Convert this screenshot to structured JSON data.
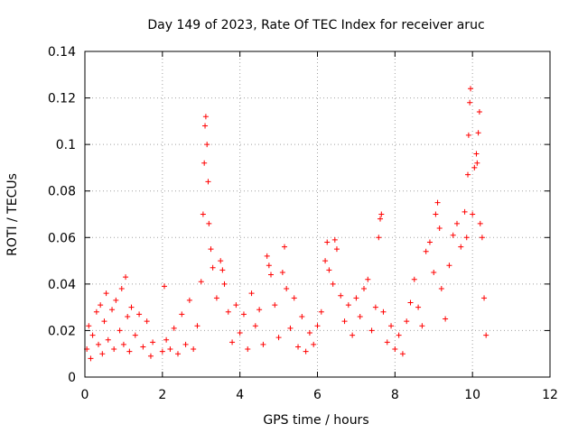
{
  "chart_data": {
    "type": "scatter",
    "title": "Day 149 of 2023, Rate Of TEC Index for receiver aruc",
    "xlabel": "GPS time / hours",
    "ylabel": "ROTI / TECUs",
    "xlim": [
      0,
      12
    ],
    "ylim": [
      0,
      0.14
    ],
    "xticks": [
      "0",
      "2",
      "4",
      "6",
      "8",
      "10",
      "12"
    ],
    "yticks": [
      "0",
      "0.02",
      "0.04",
      "0.06",
      "0.08",
      "0.1",
      "0.12",
      "0.14"
    ],
    "grid": true,
    "marker": "+",
    "color": "#ff0000",
    "series": [
      {
        "points": [
          [
            0.05,
            0.012
          ],
          [
            0.1,
            0.022
          ],
          [
            0.15,
            0.008
          ],
          [
            0.2,
            0.018
          ],
          [
            0.3,
            0.028
          ],
          [
            0.35,
            0.014
          ],
          [
            0.4,
            0.031
          ],
          [
            0.45,
            0.01
          ],
          [
            0.5,
            0.024
          ],
          [
            0.55,
            0.036
          ],
          [
            0.6,
            0.016
          ],
          [
            0.7,
            0.029
          ],
          [
            0.75,
            0.012
          ],
          [
            0.8,
            0.033
          ],
          [
            0.9,
            0.02
          ],
          [
            0.95,
            0.038
          ],
          [
            1.0,
            0.014
          ],
          [
            1.05,
            0.043
          ],
          [
            1.1,
            0.026
          ],
          [
            1.15,
            0.011
          ],
          [
            1.2,
            0.03
          ],
          [
            1.3,
            0.018
          ],
          [
            1.4,
            0.027
          ],
          [
            1.5,
            0.013
          ],
          [
            1.6,
            0.024
          ],
          [
            1.7,
            0.009
          ],
          [
            1.75,
            0.015
          ],
          [
            2.0,
            0.011
          ],
          [
            2.05,
            0.039
          ],
          [
            2.1,
            0.016
          ],
          [
            2.2,
            0.012
          ],
          [
            2.3,
            0.021
          ],
          [
            2.4,
            0.01
          ],
          [
            2.5,
            0.027
          ],
          [
            2.6,
            0.014
          ],
          [
            2.7,
            0.033
          ],
          [
            2.8,
            0.012
          ],
          [
            2.9,
            0.022
          ],
          [
            3.0,
            0.041
          ],
          [
            3.05,
            0.07
          ],
          [
            3.08,
            0.092
          ],
          [
            3.1,
            0.108
          ],
          [
            3.12,
            0.112
          ],
          [
            3.15,
            0.1
          ],
          [
            3.18,
            0.084
          ],
          [
            3.2,
            0.066
          ],
          [
            3.25,
            0.055
          ],
          [
            3.3,
            0.047
          ],
          [
            3.4,
            0.034
          ],
          [
            3.5,
            0.05
          ],
          [
            3.55,
            0.046
          ],
          [
            3.6,
            0.04
          ],
          [
            3.7,
            0.028
          ],
          [
            3.8,
            0.015
          ],
          [
            3.9,
            0.031
          ],
          [
            4.0,
            0.019
          ],
          [
            4.1,
            0.027
          ],
          [
            4.2,
            0.012
          ],
          [
            4.3,
            0.036
          ],
          [
            4.4,
            0.022
          ],
          [
            4.5,
            0.029
          ],
          [
            4.6,
            0.014
          ],
          [
            4.7,
            0.052
          ],
          [
            4.75,
            0.048
          ],
          [
            4.8,
            0.044
          ],
          [
            4.9,
            0.031
          ],
          [
            5.0,
            0.017
          ],
          [
            5.1,
            0.045
          ],
          [
            5.15,
            0.056
          ],
          [
            5.2,
            0.038
          ],
          [
            5.3,
            0.021
          ],
          [
            5.4,
            0.034
          ],
          [
            5.5,
            0.013
          ],
          [
            5.6,
            0.026
          ],
          [
            5.7,
            0.011
          ],
          [
            5.8,
            0.019
          ],
          [
            5.9,
            0.014
          ],
          [
            6.0,
            0.022
          ],
          [
            6.1,
            0.028
          ],
          [
            6.2,
            0.05
          ],
          [
            6.25,
            0.058
          ],
          [
            6.3,
            0.046
          ],
          [
            6.4,
            0.04
          ],
          [
            6.45,
            0.059
          ],
          [
            6.5,
            0.055
          ],
          [
            6.6,
            0.035
          ],
          [
            6.7,
            0.024
          ],
          [
            6.8,
            0.031
          ],
          [
            6.9,
            0.018
          ],
          [
            7.0,
            0.034
          ],
          [
            7.1,
            0.026
          ],
          [
            7.2,
            0.038
          ],
          [
            7.3,
            0.042
          ],
          [
            7.4,
            0.02
          ],
          [
            7.5,
            0.03
          ],
          [
            7.58,
            0.06
          ],
          [
            7.62,
            0.068
          ],
          [
            7.65,
            0.07
          ],
          [
            7.7,
            0.028
          ],
          [
            7.8,
            0.015
          ],
          [
            7.9,
            0.022
          ],
          [
            8.0,
            0.012
          ],
          [
            8.1,
            0.018
          ],
          [
            8.2,
            0.01
          ],
          [
            8.3,
            0.024
          ],
          [
            8.4,
            0.032
          ],
          [
            8.5,
            0.042
          ],
          [
            8.6,
            0.03
          ],
          [
            8.7,
            0.022
          ],
          [
            8.8,
            0.054
          ],
          [
            8.9,
            0.058
          ],
          [
            9.0,
            0.045
          ],
          [
            9.05,
            0.07
          ],
          [
            9.1,
            0.075
          ],
          [
            9.15,
            0.064
          ],
          [
            9.2,
            0.038
          ],
          [
            9.3,
            0.025
          ],
          [
            9.4,
            0.048
          ],
          [
            9.5,
            0.061
          ],
          [
            9.6,
            0.066
          ],
          [
            9.7,
            0.056
          ],
          [
            9.8,
            0.071
          ],
          [
            9.85,
            0.06
          ],
          [
            9.88,
            0.087
          ],
          [
            9.9,
            0.104
          ],
          [
            9.93,
            0.118
          ],
          [
            9.95,
            0.124
          ],
          [
            10.0,
            0.07
          ],
          [
            10.05,
            0.09
          ],
          [
            10.1,
            0.096
          ],
          [
            10.12,
            0.092
          ],
          [
            10.15,
            0.105
          ],
          [
            10.18,
            0.114
          ],
          [
            10.2,
            0.066
          ],
          [
            10.25,
            0.06
          ],
          [
            10.3,
            0.034
          ],
          [
            10.35,
            0.018
          ]
        ]
      }
    ]
  }
}
